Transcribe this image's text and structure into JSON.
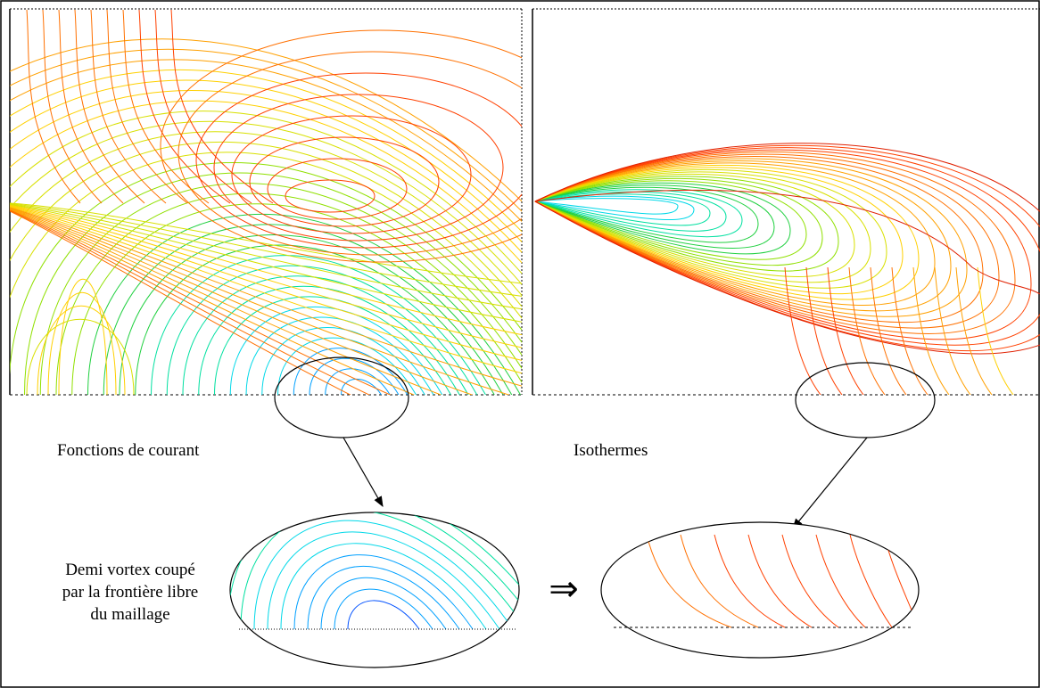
{
  "labels": {
    "left_panel": "Fonctions de courant",
    "right_panel": "Isothermes",
    "note_line1": "Demi vortex coupé",
    "note_line2": "par la frontière libre",
    "note_line3": "du maillage",
    "implies_symbol": "⇒"
  },
  "colors": {
    "palette": [
      "#0000cc",
      "#0050ff",
      "#00a0ff",
      "#00d8e8",
      "#00e0a0",
      "#20d040",
      "#90e000",
      "#d8e000",
      "#ffd000",
      "#ffa000",
      "#ff7000",
      "#ff4000",
      "#e02000"
    ],
    "frame": "#000000",
    "dashed": "#000000"
  }
}
